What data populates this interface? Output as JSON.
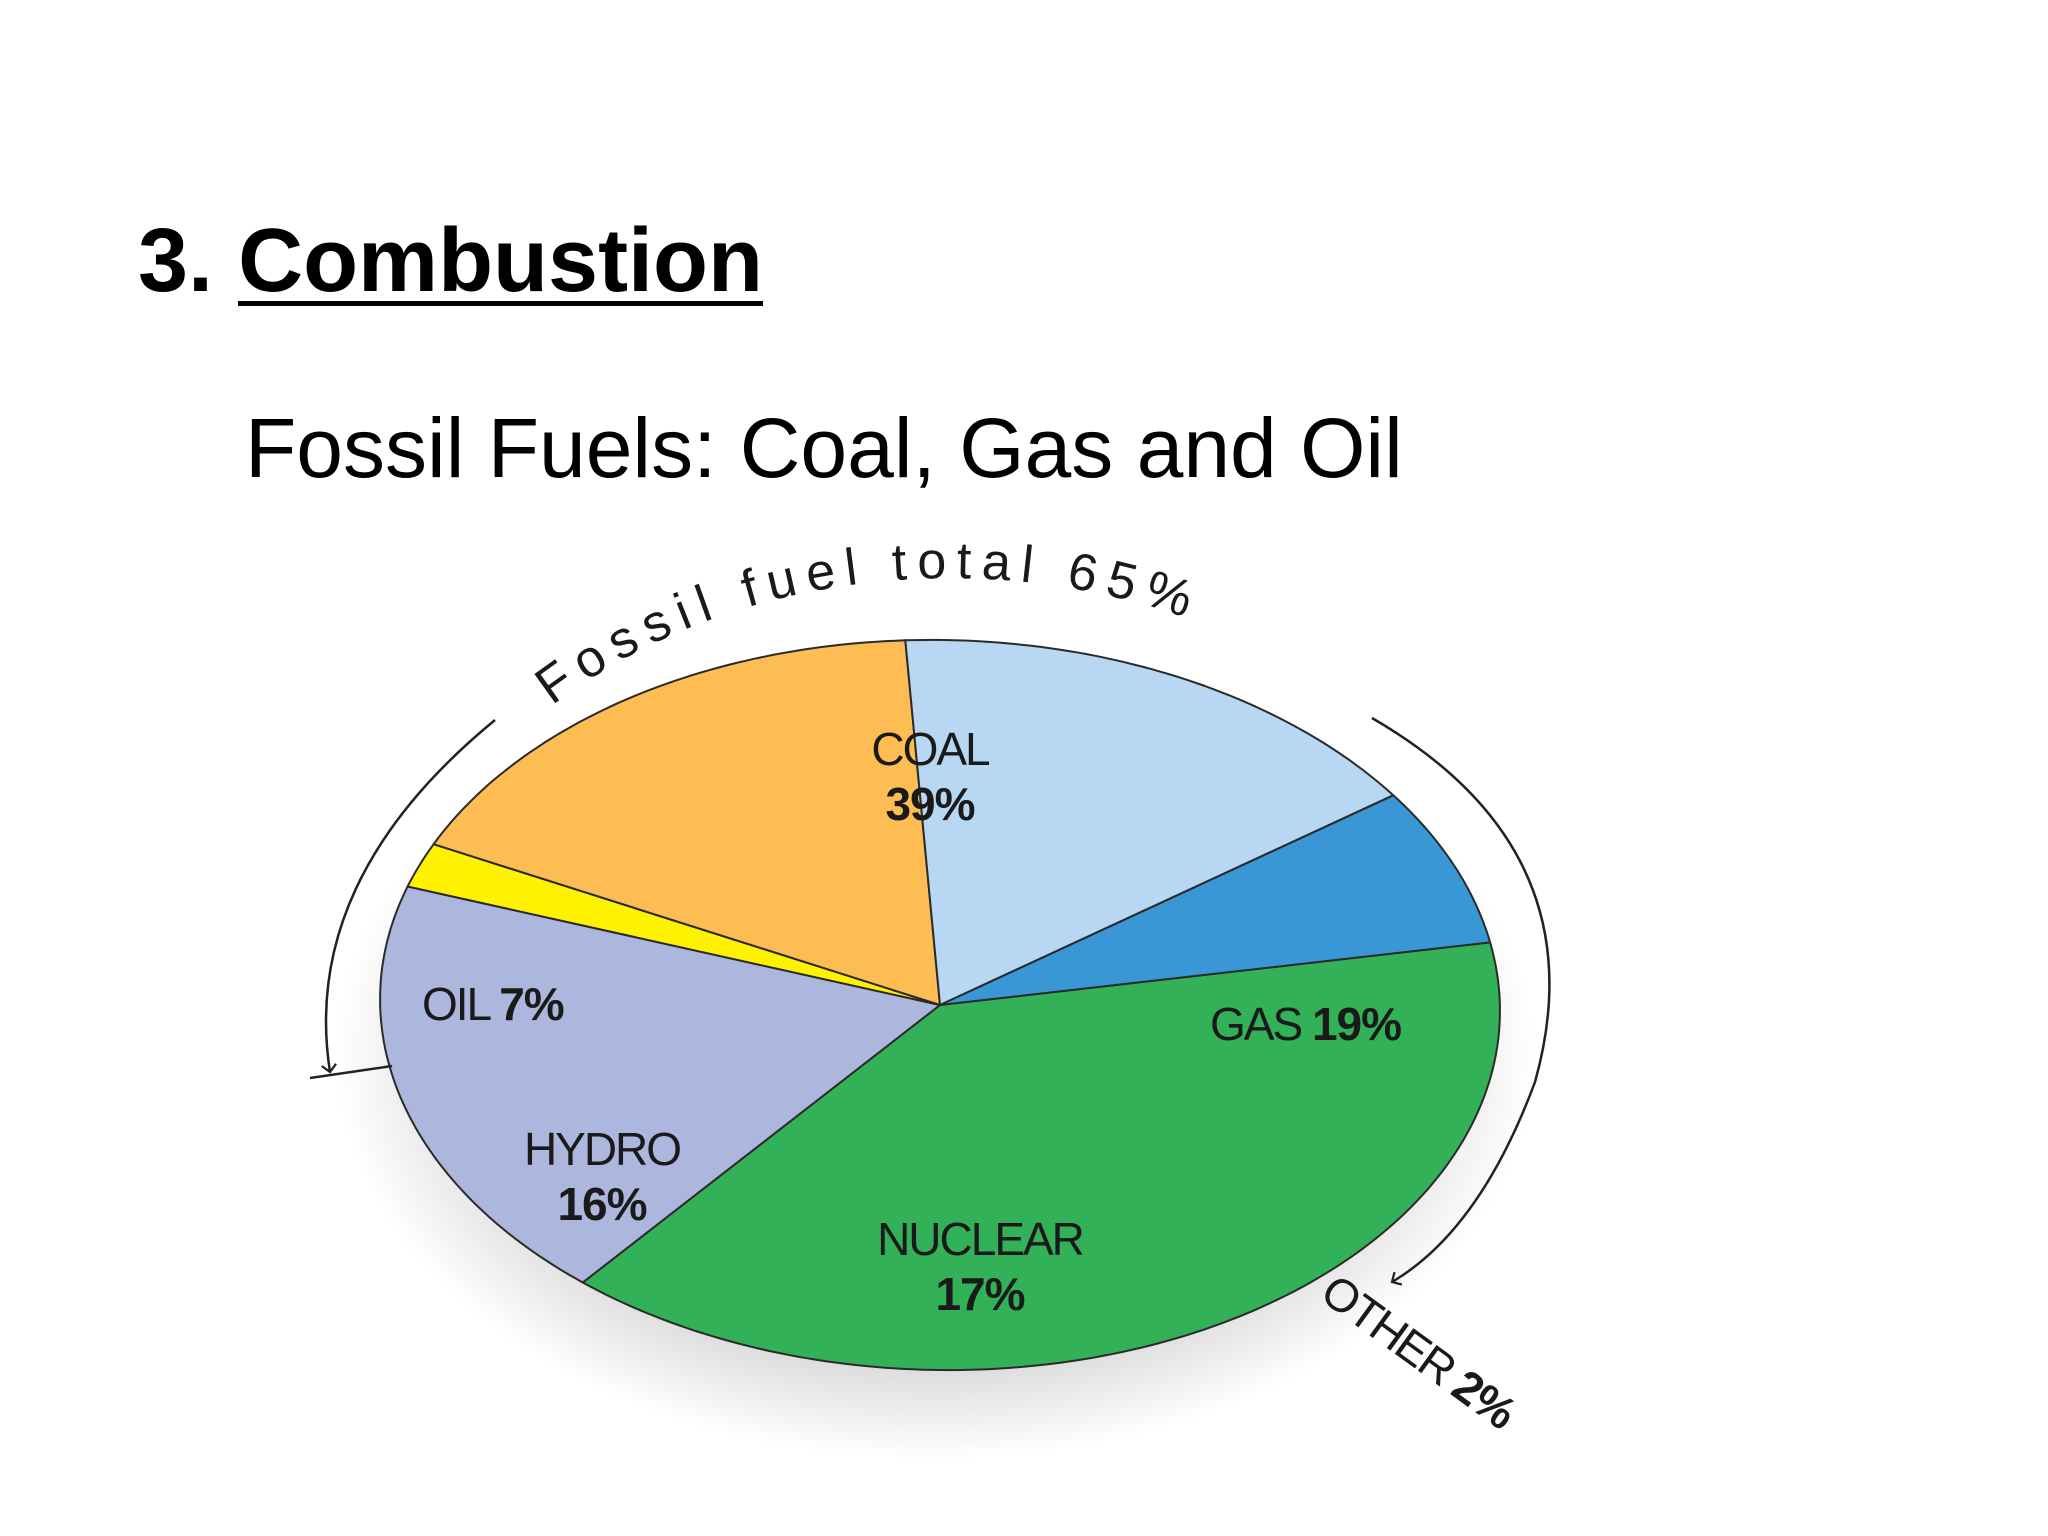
{
  "slide": {
    "number": "3.",
    "title": "Combustion",
    "subtitle": "Fossil Fuels: Coal, Gas and Oil"
  },
  "chart_data": {
    "type": "pie",
    "title": "",
    "group_label": "Fossil fuel total 65%",
    "slices": [
      {
        "name": "COAL",
        "value": 39,
        "label": "39%",
        "color": "#33b159"
      },
      {
        "name": "GAS",
        "value": 19,
        "label": "19%",
        "color": "#adb6dd"
      },
      {
        "name": "OTHER",
        "value": 2,
        "label": "2%",
        "color": "#fff200"
      },
      {
        "name": "NUCLEAR",
        "value": 17,
        "label": "17%",
        "color": "#fdbd52"
      },
      {
        "name": "HYDRO",
        "value": 16,
        "label": "16%",
        "color": "#b7d7f3"
      },
      {
        "name": "OIL",
        "value": 7,
        "label": "7%",
        "color": "#3a97d6"
      }
    ]
  }
}
